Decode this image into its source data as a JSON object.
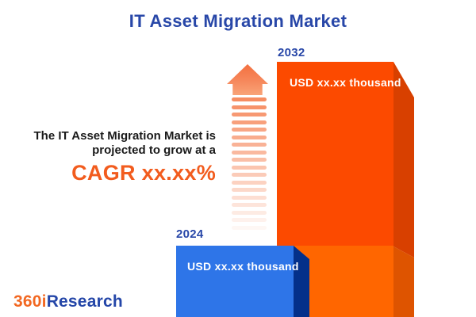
{
  "title": "IT Asset Migration Market",
  "annotation": {
    "line1": "The IT Asset Migration Market is",
    "line2": "projected to grow at a",
    "cagr": "CAGR xx.xx%"
  },
  "bars": [
    {
      "year": "2024",
      "value_label": "USD xx.xx thousand"
    },
    {
      "year": "2032",
      "value_label": "USD xx.xx thousand"
    }
  ],
  "logo": {
    "prefix": "360i",
    "suffix": "Research"
  },
  "colors": {
    "title_blue": "#2847A8",
    "cagr_orange": "#F25C1E",
    "bar_2032_face": "#FC4A00",
    "bar_2032_side": "#D84000",
    "bar_2032_lower_face": "#FF6600",
    "bar_2032_lower_side": "#DE5400",
    "bar_2024_face": "#2E75E8",
    "bar_2024_side": "#04308A",
    "arrow_orange": "#F6875A",
    "value_text": "#FFFFFF",
    "body_text": "#1A1A1A",
    "logo_orange": "#F26822",
    "logo_blue": "#2446A8"
  },
  "chart_data": {
    "type": "bar",
    "title": "IT Asset Migration Market",
    "categories": [
      "2024",
      "2032"
    ],
    "values": [
      null,
      null
    ],
    "value_labels": [
      "USD xx.xx thousand",
      "USD xx.xx thousand"
    ],
    "series_unit": "USD thousand",
    "cagr_label": "CAGR xx.xx%",
    "annotation": "The IT Asset Migration Market is projected to grow at a CAGR xx.xx%",
    "bar_colors": [
      "#2E75E8",
      "#FC4A00"
    ],
    "relative_bar_heights": [
      90,
      322
    ],
    "legend": false,
    "grid": false,
    "axes_shown": false
  }
}
